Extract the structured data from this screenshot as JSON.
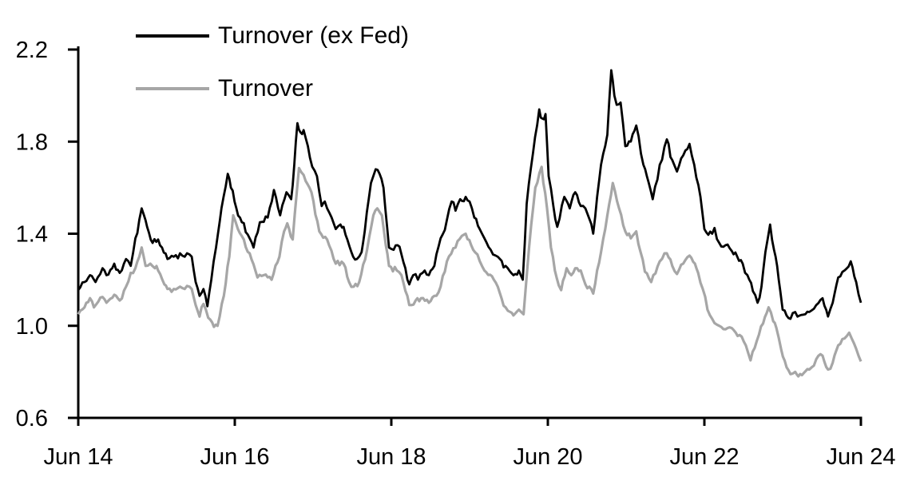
{
  "chart_data": {
    "type": "line",
    "grid": false,
    "background": "#ffffff",
    "legend_position": "top-left",
    "axis_color": "#000000",
    "x_axis": {
      "label": "",
      "range": [
        0,
        10
      ],
      "unit": "years since Jun 2014",
      "tick_values": [
        0,
        2,
        4,
        6,
        8,
        10
      ],
      "tick_labels": [
        "Jun 14",
        "Jun 16",
        "Jun 18",
        "Jun 20",
        "Jun 22",
        "Jun 24"
      ]
    },
    "y_axis": {
      "label": "",
      "range": [
        0.6,
        2.2
      ],
      "tick_values": [
        0.6,
        1.0,
        1.4,
        1.8,
        2.2
      ],
      "tick_labels": [
        "0.6",
        "1.0",
        "1.4",
        "1.8",
        "2.2"
      ]
    },
    "noise_seed": 42,
    "series": [
      {
        "name": "Turnover (ex Fed)",
        "color": "#000000",
        "width": 2.8,
        "noise_amplitude": 0.012,
        "points": [
          [
            0.0,
            1.155
          ],
          [
            0.08,
            1.19
          ],
          [
            0.15,
            1.22
          ],
          [
            0.22,
            1.19
          ],
          [
            0.31,
            1.25
          ],
          [
            0.36,
            1.22
          ],
          [
            0.46,
            1.27
          ],
          [
            0.53,
            1.23
          ],
          [
            0.61,
            1.29
          ],
          [
            0.67,
            1.26
          ],
          [
            0.73,
            1.38
          ],
          [
            0.78,
            1.46
          ],
          [
            0.81,
            1.51
          ],
          [
            0.84,
            1.48
          ],
          [
            0.88,
            1.43
          ],
          [
            0.95,
            1.36
          ],
          [
            1.02,
            1.375
          ],
          [
            1.07,
            1.34
          ],
          [
            1.14,
            1.29
          ],
          [
            1.22,
            1.3
          ],
          [
            1.3,
            1.315
          ],
          [
            1.36,
            1.3
          ],
          [
            1.42,
            1.31
          ],
          [
            1.45,
            1.3
          ],
          [
            1.5,
            1.19
          ],
          [
            1.55,
            1.13
          ],
          [
            1.6,
            1.16
          ],
          [
            1.65,
            1.085
          ],
          [
            1.7,
            1.2
          ],
          [
            1.76,
            1.34
          ],
          [
            1.83,
            1.51
          ],
          [
            1.91,
            1.66
          ],
          [
            1.95,
            1.6
          ],
          [
            2.02,
            1.51
          ],
          [
            2.09,
            1.45
          ],
          [
            2.19,
            1.38
          ],
          [
            2.24,
            1.34
          ],
          [
            2.32,
            1.45
          ],
          [
            2.42,
            1.47
          ],
          [
            2.5,
            1.59
          ],
          [
            2.58,
            1.48
          ],
          [
            2.66,
            1.58
          ],
          [
            2.72,
            1.55
          ],
          [
            2.76,
            1.7
          ],
          [
            2.8,
            1.88
          ],
          [
            2.84,
            1.84
          ],
          [
            2.88,
            1.85
          ],
          [
            2.96,
            1.73
          ],
          [
            3.05,
            1.65
          ],
          [
            3.11,
            1.52
          ],
          [
            3.15,
            1.54
          ],
          [
            3.21,
            1.49
          ],
          [
            3.29,
            1.42
          ],
          [
            3.35,
            1.44
          ],
          [
            3.39,
            1.43
          ],
          [
            3.49,
            1.32
          ],
          [
            3.56,
            1.29
          ],
          [
            3.62,
            1.32
          ],
          [
            3.66,
            1.41
          ],
          [
            3.74,
            1.62
          ],
          [
            3.8,
            1.68
          ],
          [
            3.85,
            1.66
          ],
          [
            3.9,
            1.6
          ],
          [
            3.97,
            1.34
          ],
          [
            4.03,
            1.33
          ],
          [
            4.08,
            1.35
          ],
          [
            4.13,
            1.31
          ],
          [
            4.18,
            1.25
          ],
          [
            4.23,
            1.18
          ],
          [
            4.28,
            1.22
          ],
          [
            4.34,
            1.2
          ],
          [
            4.4,
            1.23
          ],
          [
            4.48,
            1.22
          ],
          [
            4.55,
            1.26
          ],
          [
            4.63,
            1.38
          ],
          [
            4.71,
            1.46
          ],
          [
            4.77,
            1.54
          ],
          [
            4.82,
            1.5
          ],
          [
            4.88,
            1.55
          ],
          [
            4.95,
            1.56
          ],
          [
            5.0,
            1.54
          ],
          [
            5.06,
            1.47
          ],
          [
            5.13,
            1.42
          ],
          [
            5.19,
            1.38
          ],
          [
            5.27,
            1.33
          ],
          [
            5.36,
            1.3
          ],
          [
            5.46,
            1.26
          ],
          [
            5.56,
            1.22
          ],
          [
            5.63,
            1.24
          ],
          [
            5.68,
            1.2
          ],
          [
            5.73,
            1.53
          ],
          [
            5.81,
            1.75
          ],
          [
            5.89,
            1.94
          ],
          [
            5.93,
            1.9
          ],
          [
            5.97,
            1.92
          ],
          [
            6.01,
            1.65
          ],
          [
            6.07,
            1.52
          ],
          [
            6.12,
            1.43
          ],
          [
            6.21,
            1.56
          ],
          [
            6.28,
            1.51
          ],
          [
            6.35,
            1.58
          ],
          [
            6.42,
            1.52
          ],
          [
            6.48,
            1.51
          ],
          [
            6.58,
            1.4
          ],
          [
            6.68,
            1.7
          ],
          [
            6.76,
            1.83
          ],
          [
            6.81,
            2.11
          ],
          [
            6.85,
            2.0
          ],
          [
            6.88,
            1.96
          ],
          [
            6.93,
            1.97
          ],
          [
            6.99,
            1.78
          ],
          [
            7.06,
            1.8
          ],
          [
            7.13,
            1.87
          ],
          [
            7.22,
            1.7
          ],
          [
            7.29,
            1.62
          ],
          [
            7.34,
            1.55
          ],
          [
            7.43,
            1.7
          ],
          [
            7.52,
            1.81
          ],
          [
            7.59,
            1.72
          ],
          [
            7.65,
            1.67
          ],
          [
            7.73,
            1.74
          ],
          [
            7.81,
            1.79
          ],
          [
            7.87,
            1.7
          ],
          [
            7.95,
            1.56
          ],
          [
            8.0,
            1.42
          ],
          [
            8.05,
            1.395
          ],
          [
            8.1,
            1.4
          ],
          [
            8.13,
            1.425
          ],
          [
            8.19,
            1.36
          ],
          [
            8.27,
            1.35
          ],
          [
            8.35,
            1.325
          ],
          [
            8.42,
            1.3
          ],
          [
            8.49,
            1.27
          ],
          [
            8.55,
            1.22
          ],
          [
            8.62,
            1.15
          ],
          [
            8.68,
            1.1
          ],
          [
            8.73,
            1.17
          ],
          [
            8.78,
            1.32
          ],
          [
            8.84,
            1.44
          ],
          [
            8.89,
            1.33
          ],
          [
            8.93,
            1.26
          ],
          [
            8.97,
            1.15
          ],
          [
            9.0,
            1.07
          ],
          [
            9.05,
            1.045
          ],
          [
            9.1,
            1.03
          ],
          [
            9.16,
            1.06
          ],
          [
            9.22,
            1.045
          ],
          [
            9.29,
            1.05
          ],
          [
            9.34,
            1.06
          ],
          [
            9.43,
            1.09
          ],
          [
            9.51,
            1.12
          ],
          [
            9.58,
            1.04
          ],
          [
            9.64,
            1.1
          ],
          [
            9.71,
            1.21
          ],
          [
            9.79,
            1.24
          ],
          [
            9.87,
            1.28
          ],
          [
            9.94,
            1.19
          ],
          [
            10.0,
            1.1
          ]
        ]
      },
      {
        "name": "Turnover",
        "color": "#a6a6a6",
        "width": 3.2,
        "noise_amplitude": 0.01,
        "points": [
          [
            0.0,
            1.05
          ],
          [
            0.08,
            1.08
          ],
          [
            0.15,
            1.12
          ],
          [
            0.2,
            1.08
          ],
          [
            0.31,
            1.125
          ],
          [
            0.36,
            1.1
          ],
          [
            0.46,
            1.135
          ],
          [
            0.53,
            1.11
          ],
          [
            0.61,
            1.17
          ],
          [
            0.67,
            1.23
          ],
          [
            0.73,
            1.25
          ],
          [
            0.78,
            1.3
          ],
          [
            0.81,
            1.34
          ],
          [
            0.86,
            1.26
          ],
          [
            0.92,
            1.27
          ],
          [
            0.98,
            1.25
          ],
          [
            1.02,
            1.24
          ],
          [
            1.1,
            1.18
          ],
          [
            1.14,
            1.16
          ],
          [
            1.22,
            1.16
          ],
          [
            1.3,
            1.17
          ],
          [
            1.36,
            1.16
          ],
          [
            1.42,
            1.17
          ],
          [
            1.45,
            1.16
          ],
          [
            1.5,
            1.09
          ],
          [
            1.55,
            1.04
          ],
          [
            1.6,
            1.095
          ],
          [
            1.66,
            1.035
          ],
          [
            1.71,
            1.015
          ],
          [
            1.78,
            1.0
          ],
          [
            1.86,
            1.13
          ],
          [
            1.93,
            1.3
          ],
          [
            1.98,
            1.48
          ],
          [
            2.04,
            1.42
          ],
          [
            2.09,
            1.39
          ],
          [
            2.19,
            1.315
          ],
          [
            2.29,
            1.21
          ],
          [
            2.37,
            1.22
          ],
          [
            2.47,
            1.2
          ],
          [
            2.57,
            1.3
          ],
          [
            2.63,
            1.41
          ],
          [
            2.67,
            1.445
          ],
          [
            2.74,
            1.375
          ],
          [
            2.82,
            1.685
          ],
          [
            2.88,
            1.655
          ],
          [
            2.98,
            1.58
          ],
          [
            3.08,
            1.41
          ],
          [
            3.18,
            1.375
          ],
          [
            3.29,
            1.27
          ],
          [
            3.39,
            1.27
          ],
          [
            3.46,
            1.19
          ],
          [
            3.52,
            1.17
          ],
          [
            3.59,
            1.19
          ],
          [
            3.69,
            1.33
          ],
          [
            3.77,
            1.48
          ],
          [
            3.82,
            1.51
          ],
          [
            3.88,
            1.48
          ],
          [
            3.93,
            1.35
          ],
          [
            3.97,
            1.26
          ],
          [
            4.07,
            1.24
          ],
          [
            4.13,
            1.22
          ],
          [
            4.23,
            1.09
          ],
          [
            4.31,
            1.11
          ],
          [
            4.38,
            1.12
          ],
          [
            4.48,
            1.1
          ],
          [
            4.55,
            1.13
          ],
          [
            4.63,
            1.17
          ],
          [
            4.71,
            1.28
          ],
          [
            4.82,
            1.34
          ],
          [
            4.9,
            1.39
          ],
          [
            4.95,
            1.4
          ],
          [
            5.02,
            1.35
          ],
          [
            5.1,
            1.31
          ],
          [
            5.19,
            1.24
          ],
          [
            5.31,
            1.2
          ],
          [
            5.36,
            1.17
          ],
          [
            5.46,
            1.08
          ],
          [
            5.52,
            1.06
          ],
          [
            5.56,
            1.045
          ],
          [
            5.63,
            1.07
          ],
          [
            5.69,
            1.05
          ],
          [
            5.76,
            1.34
          ],
          [
            5.84,
            1.6
          ],
          [
            5.92,
            1.69
          ],
          [
            5.99,
            1.51
          ],
          [
            6.04,
            1.34
          ],
          [
            6.09,
            1.24
          ],
          [
            6.14,
            1.175
          ],
          [
            6.17,
            1.155
          ],
          [
            6.24,
            1.25
          ],
          [
            6.3,
            1.22
          ],
          [
            6.35,
            1.25
          ],
          [
            6.42,
            1.24
          ],
          [
            6.48,
            1.18
          ],
          [
            6.58,
            1.14
          ],
          [
            6.68,
            1.32
          ],
          [
            6.76,
            1.48
          ],
          [
            6.83,
            1.62
          ],
          [
            6.91,
            1.51
          ],
          [
            6.99,
            1.41
          ],
          [
            7.06,
            1.38
          ],
          [
            7.13,
            1.41
          ],
          [
            7.24,
            1.235
          ],
          [
            7.32,
            1.19
          ],
          [
            7.43,
            1.28
          ],
          [
            7.52,
            1.315
          ],
          [
            7.59,
            1.26
          ],
          [
            7.65,
            1.225
          ],
          [
            7.73,
            1.27
          ],
          [
            7.81,
            1.305
          ],
          [
            7.88,
            1.27
          ],
          [
            7.92,
            1.23
          ],
          [
            7.98,
            1.16
          ],
          [
            8.04,
            1.07
          ],
          [
            8.1,
            1.03
          ],
          [
            8.19,
            1.0
          ],
          [
            8.27,
            0.985
          ],
          [
            8.35,
            0.99
          ],
          [
            8.45,
            0.96
          ],
          [
            8.53,
            0.915
          ],
          [
            8.59,
            0.85
          ],
          [
            8.67,
            0.935
          ],
          [
            8.75,
            1.01
          ],
          [
            8.82,
            1.08
          ],
          [
            8.88,
            1.02
          ],
          [
            8.92,
            0.99
          ],
          [
            8.98,
            0.9
          ],
          [
            9.05,
            0.82
          ],
          [
            9.1,
            0.79
          ],
          [
            9.16,
            0.8
          ],
          [
            9.2,
            0.78
          ],
          [
            9.27,
            0.795
          ],
          [
            9.34,
            0.81
          ],
          [
            9.43,
            0.855
          ],
          [
            9.51,
            0.87
          ],
          [
            9.58,
            0.81
          ],
          [
            9.64,
            0.84
          ],
          [
            9.71,
            0.915
          ],
          [
            9.79,
            0.945
          ],
          [
            9.85,
            0.97
          ],
          [
            9.94,
            0.9
          ],
          [
            10.0,
            0.845
          ]
        ]
      }
    ]
  }
}
